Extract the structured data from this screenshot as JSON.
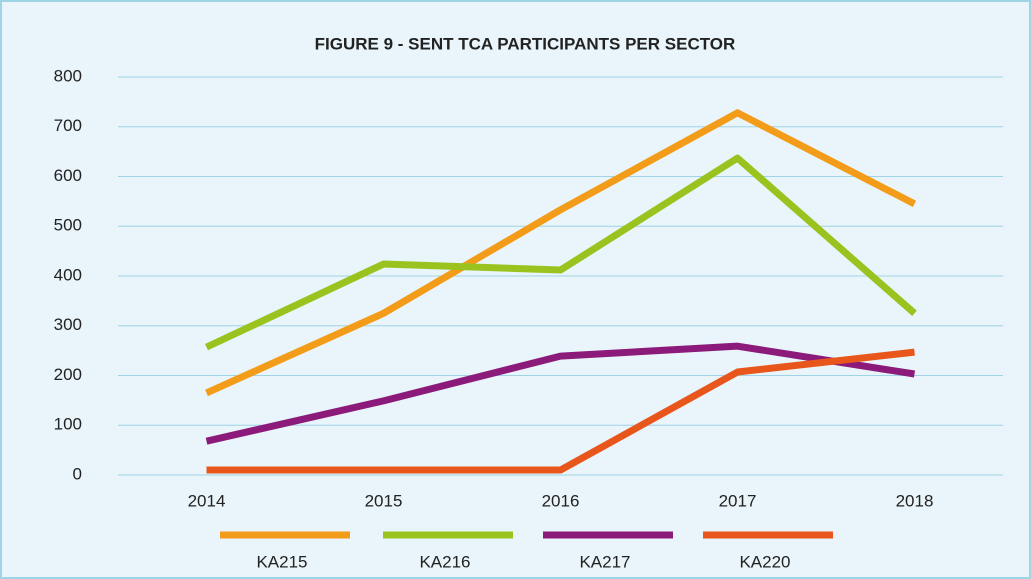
{
  "chart_data": {
    "type": "line",
    "title": "FIGURE 9 - SENT TCA PARTICIPANTS PER SECTOR",
    "categories": [
      "2014",
      "2015",
      "2016",
      "2017",
      "2018"
    ],
    "series": [
      {
        "name": "KA215",
        "color": "#f39c1a",
        "values": [
          165,
          325,
          533,
          728,
          545
        ]
      },
      {
        "name": "KA216",
        "color": "#9bc31f",
        "values": [
          257,
          424,
          412,
          637,
          325
        ]
      },
      {
        "name": "KA217",
        "color": "#8b1a7a",
        "values": [
          68,
          149,
          239,
          259,
          203
        ]
      },
      {
        "name": "KA220",
        "color": "#e8561c",
        "values": [
          10,
          10,
          10,
          207,
          247
        ]
      }
    ],
    "ylim": [
      0,
      800
    ],
    "yticks": [
      0,
      100,
      200,
      300,
      400,
      500,
      600,
      700,
      800
    ],
    "grid": true,
    "legend": "bottom"
  }
}
